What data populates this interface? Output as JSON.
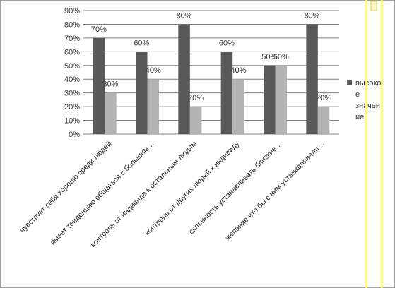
{
  "chart_data": {
    "type": "bar",
    "categories": [
      "чувствует себя хорошо среди людей",
      "имеет тенденцию общаться с большим…",
      "контроль от индивида к остальным людям",
      "контроль от других людей к индивиду",
      "склонность устанавливать близкие…",
      "желание что бы с ним устанавливали…"
    ],
    "series": [
      {
        "name": "высокое значение",
        "values": [
          70,
          60,
          80,
          60,
          50,
          80
        ],
        "color": "#595959"
      },
      {
        "name": "",
        "values": [
          30,
          40,
          20,
          40,
          50,
          20
        ],
        "color": "#b3b3b3"
      }
    ],
    "value_labels": [
      [
        "70%",
        "60%",
        "80%",
        "60%",
        "50%",
        "80%"
      ],
      [
        "30%",
        "40%",
        "20%",
        "40%",
        "50%",
        "20%"
      ]
    ],
    "y_ticks": [
      "0%",
      "10%",
      "20%",
      "30%",
      "40%",
      "50%",
      "60%",
      "70%",
      "80%",
      "90%"
    ],
    "ylim": [
      0,
      90
    ],
    "grid": true,
    "legend": {
      "position": "right",
      "lines": [
        "высоко",
        "е",
        "значен",
        "ие"
      ]
    },
    "title": "",
    "xlabel": "",
    "ylabel": ""
  },
  "colors": {
    "grid": "#7f7f7f",
    "selection_border": "#ffff66",
    "frame": "#808080"
  }
}
